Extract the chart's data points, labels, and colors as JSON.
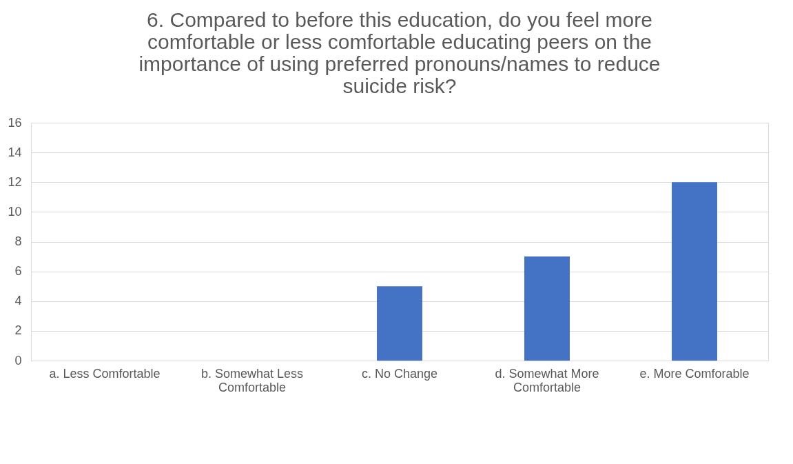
{
  "chart_data": {
    "type": "bar",
    "title": "6. Compared to before this education, do you feel more comfortable or less comfortable educating peers on the importance of using preferred pronouns/names to reduce suicide risk?",
    "categories": [
      "a. Less Comfortable",
      "b. Somewhat Less Comfortable",
      "c. No Change",
      "d. Somewhat More Comfortable",
      "e. More Comforable"
    ],
    "values": [
      0,
      0,
      5,
      7,
      12
    ],
    "color": "#4472c4",
    "ylim": [
      0,
      16
    ],
    "yticks": [
      0,
      2,
      4,
      6,
      8,
      10,
      12,
      14,
      16
    ],
    "grid": "y"
  }
}
